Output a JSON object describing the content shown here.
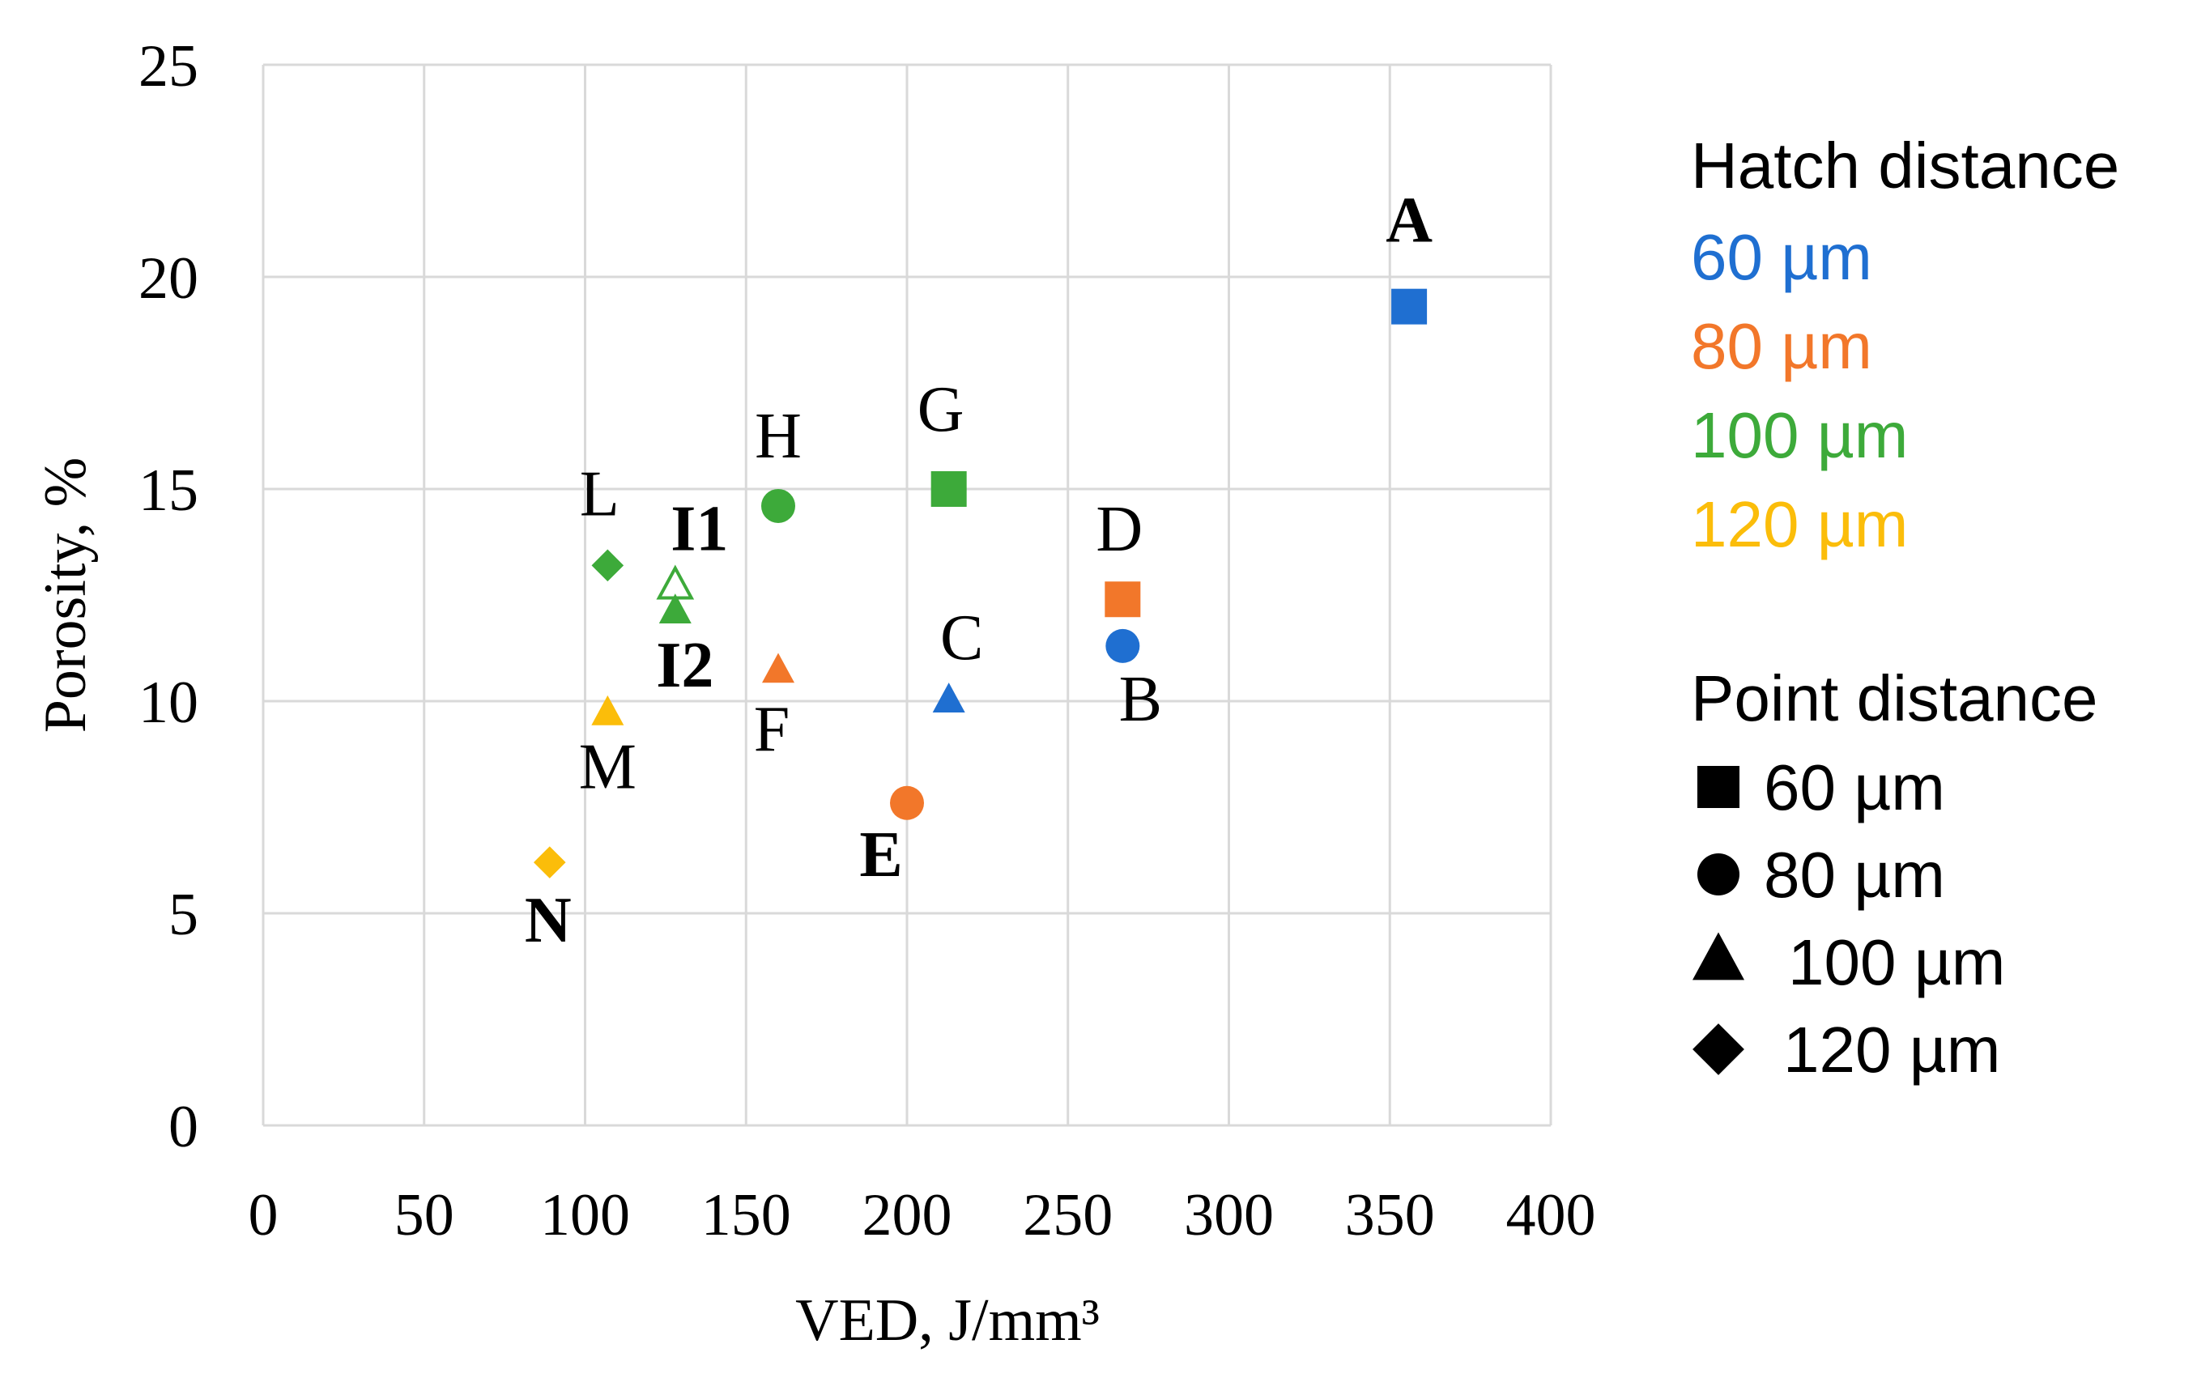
{
  "chart_data": {
    "type": "scatter",
    "xlabel": "VED, J/mm³",
    "ylabel": "Porosity, %",
    "xlim": [
      0,
      400
    ],
    "ylim": [
      0,
      25
    ],
    "xticks": [
      0,
      50,
      100,
      150,
      200,
      250,
      300,
      350,
      400
    ],
    "yticks": [
      0,
      5,
      10,
      15,
      20,
      25
    ],
    "grid": true,
    "legend_position": "right",
    "colors": {
      "60 µm": "#1f6fd1",
      "80 µm": "#f2772a",
      "100 µm": "#3daa3a",
      "120 µm": "#fbbd0a"
    },
    "legend": {
      "hatch": {
        "title": "Hatch distance",
        "entries": [
          {
            "label": "60 µm",
            "color": "#1f6fd1"
          },
          {
            "label": "80 µm",
            "color": "#f2772a"
          },
          {
            "label": "100 µm",
            "color": "#3daa3a"
          },
          {
            "label": "120 µm",
            "color": "#fbbd0a"
          }
        ]
      },
      "point": {
        "title": "Point distance",
        "entries": [
          {
            "label": "60 µm",
            "marker": "square"
          },
          {
            "label": "80 µm",
            "marker": "circle"
          },
          {
            "label": "100 µm",
            "marker": "triangle"
          },
          {
            "label": "120 µm",
            "marker": "diamond"
          }
        ]
      }
    },
    "points": [
      {
        "label": "A",
        "x": 356,
        "y": 19.3,
        "hatch": "60 µm",
        "point": "60 µm",
        "marker": "square",
        "filled": true,
        "bold": true,
        "label_pos": "above"
      },
      {
        "label": "B",
        "x": 267,
        "y": 11.3,
        "hatch": "60 µm",
        "point": "80 µm",
        "marker": "circle",
        "filled": true,
        "bold": false,
        "label_pos": "below-right"
      },
      {
        "label": "C",
        "x": 213,
        "y": 10.0,
        "hatch": "60 µm",
        "point": "100 µm",
        "marker": "triangle",
        "filled": true,
        "bold": false,
        "label_pos": "above-right"
      },
      {
        "label": "D",
        "x": 267,
        "y": 12.4,
        "hatch": "80 µm",
        "point": "60 µm",
        "marker": "square",
        "filled": true,
        "bold": false,
        "label_pos": "above"
      },
      {
        "label": "E",
        "x": 200,
        "y": 7.6,
        "hatch": "80 µm",
        "point": "80 µm",
        "marker": "circle",
        "filled": true,
        "bold": true,
        "label_pos": "below-left"
      },
      {
        "label": "F",
        "x": 160,
        "y": 10.7,
        "hatch": "80 µm",
        "point": "100 µm",
        "marker": "triangle",
        "filled": true,
        "bold": false,
        "label_pos": "below"
      },
      {
        "label": "G",
        "x": 213,
        "y": 15.0,
        "hatch": "100 µm",
        "point": "60 µm",
        "marker": "square",
        "filled": true,
        "bold": false,
        "label_pos": "above-left"
      },
      {
        "label": "H",
        "x": 160,
        "y": 14.6,
        "hatch": "100 µm",
        "point": "80 µm",
        "marker": "circle",
        "filled": true,
        "bold": false,
        "label_pos": "above"
      },
      {
        "label": "I1",
        "x": 128,
        "y": 12.7,
        "hatch": "100 µm",
        "point": "100 µm",
        "marker": "triangle",
        "filled": false,
        "bold": true,
        "label_pos": "above-right"
      },
      {
        "label": "I2",
        "x": 128,
        "y": 12.1,
        "hatch": "100 µm",
        "point": "100 µm",
        "marker": "triangle",
        "filled": true,
        "bold": true,
        "label_pos": "below"
      },
      {
        "label": "L",
        "x": 107,
        "y": 13.2,
        "hatch": "100 µm",
        "point": "120 µm",
        "marker": "diamond",
        "filled": true,
        "bold": false,
        "label_pos": "above-left"
      },
      {
        "label": "M",
        "x": 107,
        "y": 9.7,
        "hatch": "120 µm",
        "point": "100 µm",
        "marker": "triangle",
        "filled": true,
        "bold": false,
        "label_pos": "below"
      },
      {
        "label": "N",
        "x": 89,
        "y": 6.2,
        "hatch": "120 µm",
        "point": "120 µm",
        "marker": "diamond",
        "filled": true,
        "bold": true,
        "label_pos": "below"
      }
    ]
  }
}
